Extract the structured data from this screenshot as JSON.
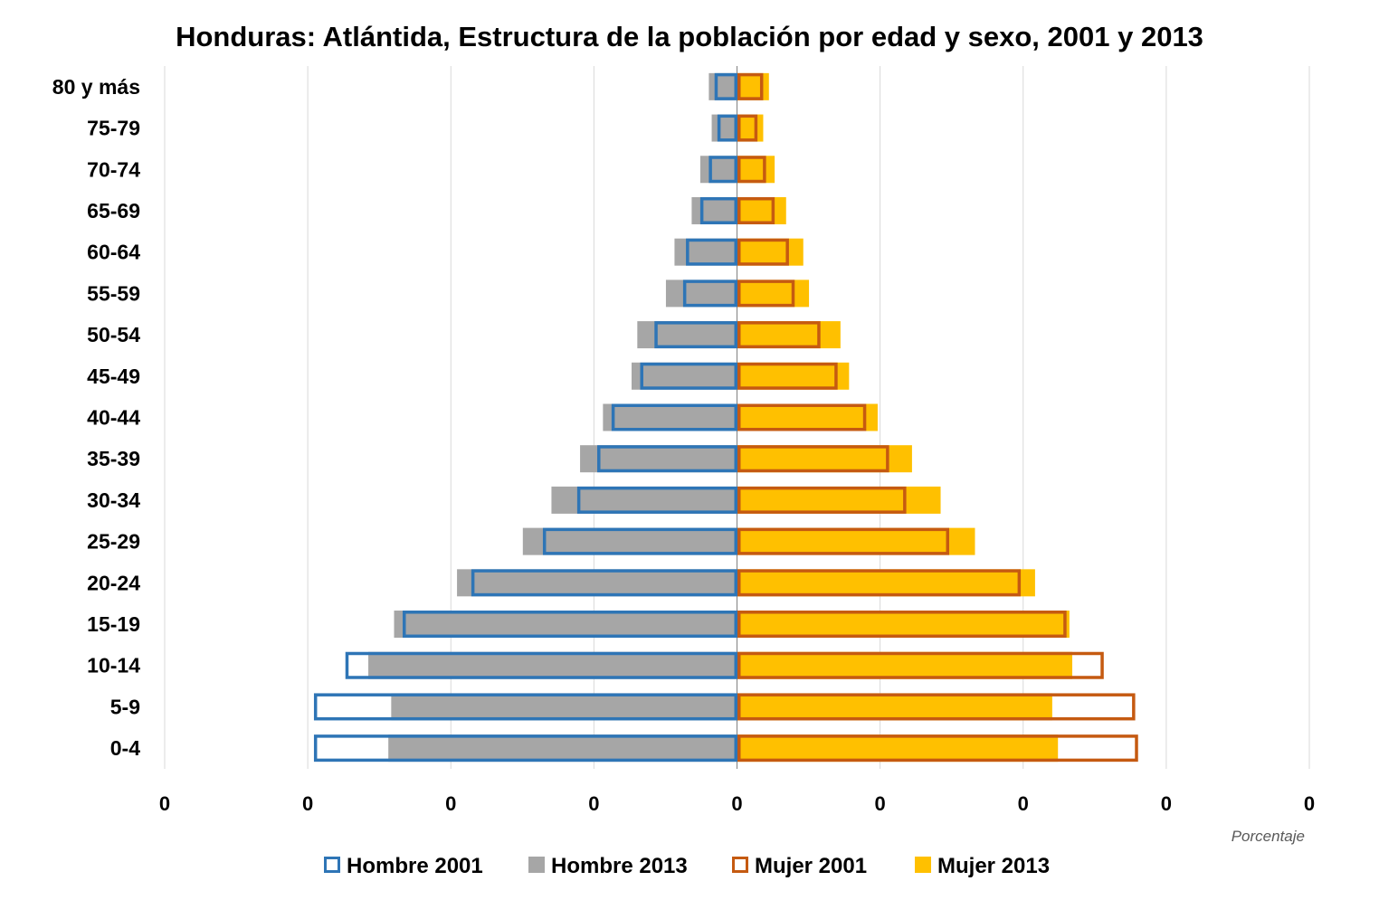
{
  "chart_data": {
    "type": "bar",
    "orientation": "horizontal-population-pyramid",
    "title": "Honduras: Atlántida, Estructura de la población por edad y sexo, 2001 y 2013",
    "xlabel": "Porcentaje",
    "categories": [
      "0-4",
      "5-9",
      "10-14",
      "15-19",
      "20-24",
      "25-29",
      "30-34",
      "35-39",
      "40-44",
      "45-49",
      "50-54",
      "55-59",
      "60-64",
      "65-69",
      "70-74",
      "75-79",
      "80 y más"
    ],
    "x_tick_labels": [
      "0",
      "0",
      "0",
      "0",
      "0",
      "0",
      "0",
      "0",
      "0"
    ],
    "xlim": [
      -0.2,
      0.2
    ],
    "grid": true,
    "legend_position": "bottom",
    "series": [
      {
        "name": "Hombre 2001",
        "side": "left",
        "style": "outline",
        "color": "#2E75B6",
        "values": [
          0.148,
          0.148,
          0.137,
          0.117,
          0.093,
          0.068,
          0.056,
          0.049,
          0.044,
          0.034,
          0.029,
          0.019,
          0.018,
          0.013,
          0.01,
          0.007,
          0.008
        ]
      },
      {
        "name": "Hombre 2013",
        "side": "left",
        "style": "fill",
        "color": "#A6A6A6",
        "values": [
          0.122,
          0.121,
          0.129,
          0.12,
          0.098,
          0.075,
          0.065,
          0.055,
          0.047,
          0.037,
          0.035,
          0.025,
          0.022,
          0.016,
          0.013,
          0.009,
          0.01
        ]
      },
      {
        "name": "Mujer 2001",
        "side": "right",
        "style": "outline",
        "color": "#C55A11",
        "values": [
          0.14,
          0.139,
          0.128,
          0.115,
          0.099,
          0.074,
          0.059,
          0.053,
          0.045,
          0.035,
          0.029,
          0.02,
          0.018,
          0.013,
          0.01,
          0.007,
          0.009
        ]
      },
      {
        "name": "Mujer 2013",
        "side": "right",
        "style": "fill",
        "color": "#FFC000",
        "values": [
          0.112,
          0.11,
          0.117,
          0.116,
          0.104,
          0.083,
          0.071,
          0.061,
          0.049,
          0.039,
          0.036,
          0.025,
          0.023,
          0.017,
          0.013,
          0.009,
          0.011
        ]
      }
    ]
  },
  "colors": {
    "grid": "#D9D9D9",
    "axis": "#808080"
  }
}
